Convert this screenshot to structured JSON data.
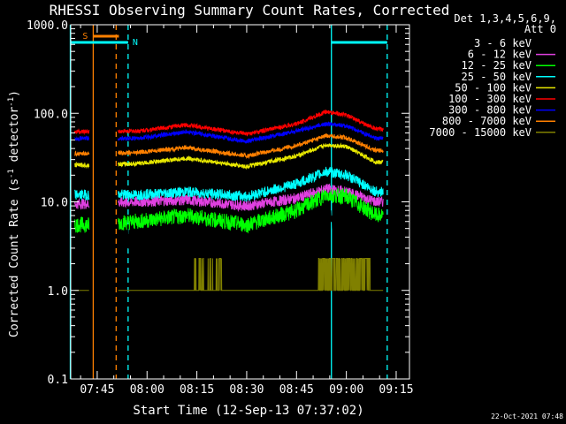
{
  "chart_data": {
    "type": "line",
    "title": "RHESSI Observing Summary Count Rates, Corrected",
    "xlabel": "Start Time (12-Sep-13 07:37:02)",
    "ylabel_main": "Corrected Count Rate (s",
    "ylabel_sup1": "-1",
    "ylabel_mid": " detector",
    "ylabel_sup2": "-1",
    "ylabel_end": ")",
    "yscale": "log",
    "ylim": [
      0.1,
      1000
    ],
    "y_ticks": [
      {
        "v": 0.1,
        "label": "0.1"
      },
      {
        "v": 1,
        "label": "1.0"
      },
      {
        "v": 10,
        "label": "10.0"
      },
      {
        "v": 100,
        "label": "100.0"
      },
      {
        "v": 1000,
        "label": "1000.0"
      }
    ],
    "xlim": [
      "07:37:02",
      "09:19:00"
    ],
    "x_ticks": [
      "07:45",
      "08:00",
      "08:15",
      "08:30",
      "08:45",
      "09:00",
      "09:15"
    ],
    "legend_header": [
      "Det 1,3,4,5,6,9,",
      "Att 0"
    ],
    "legend_position": "top-right, outside plot",
    "grid": false,
    "series": [
      {
        "name": "3 - 6 keV",
        "color": "#000000",
        "values": [
          [
            7.72,
            2.5
          ],
          [
            7.95,
            4.3
          ],
          [
            8.2,
            3.3
          ],
          [
            8.5,
            2.8
          ],
          [
            8.75,
            4
          ],
          [
            8.9,
            6.5
          ],
          [
            9.0,
            6
          ],
          [
            9.15,
            3.5
          ]
        ]
      },
      {
        "name": "6 - 12 keV",
        "color": "#e040e0",
        "values": [
          [
            7.72,
            9.5
          ],
          [
            7.95,
            10
          ],
          [
            8.2,
            10.5
          ],
          [
            8.5,
            9
          ],
          [
            8.75,
            11
          ],
          [
            8.9,
            14
          ],
          [
            9.0,
            13
          ],
          [
            9.15,
            10
          ]
        ]
      },
      {
        "name": "12 - 25 keV",
        "color": "#00ff00",
        "values": [
          [
            7.72,
            5.5
          ],
          [
            7.95,
            6
          ],
          [
            8.2,
            7
          ],
          [
            8.5,
            5.5
          ],
          [
            8.75,
            8
          ],
          [
            8.9,
            12
          ],
          [
            9.0,
            11.5
          ],
          [
            9.15,
            7
          ]
        ]
      },
      {
        "name": "25 - 50 keV",
        "color": "#00ffff",
        "values": [
          [
            7.72,
            12
          ],
          [
            7.95,
            12
          ],
          [
            8.2,
            13
          ],
          [
            8.5,
            11.5
          ],
          [
            8.75,
            16
          ],
          [
            8.9,
            22
          ],
          [
            9.0,
            20
          ],
          [
            9.15,
            13
          ]
        ]
      },
      {
        "name": "50 - 100 keV",
        "color": "#e8e800",
        "values": [
          [
            7.72,
            26
          ],
          [
            7.95,
            27
          ],
          [
            8.2,
            31
          ],
          [
            8.5,
            25
          ],
          [
            8.75,
            33
          ],
          [
            8.9,
            44
          ],
          [
            9.0,
            42
          ],
          [
            9.15,
            28
          ]
        ]
      },
      {
        "name": "100 - 300 keV",
        "color": "#ff0000",
        "values": [
          [
            7.72,
            62
          ],
          [
            7.95,
            63
          ],
          [
            8.2,
            74
          ],
          [
            8.5,
            58
          ],
          [
            8.75,
            76
          ],
          [
            8.9,
            104
          ],
          [
            9.0,
            95
          ],
          [
            9.15,
            66
          ]
        ]
      },
      {
        "name": "300 - 800 keV",
        "color": "#0000ff",
        "values": [
          [
            7.72,
            52
          ],
          [
            7.95,
            52
          ],
          [
            8.2,
            62
          ],
          [
            8.5,
            48
          ],
          [
            8.75,
            63
          ],
          [
            8.9,
            76
          ],
          [
            9.0,
            72
          ],
          [
            9.15,
            52
          ]
        ]
      },
      {
        "name": "800 - 7000 keV",
        "color": "#ff8000",
        "values": [
          [
            7.72,
            35
          ],
          [
            7.95,
            36
          ],
          [
            8.2,
            41
          ],
          [
            8.5,
            33
          ],
          [
            8.75,
            43
          ],
          [
            8.9,
            56
          ],
          [
            9.0,
            53
          ],
          [
            9.15,
            38
          ]
        ]
      },
      {
        "name": "7000 - 15000 keV",
        "color": "#808000",
        "values": [
          [
            7.72,
            1
          ],
          [
            7.95,
            1
          ],
          [
            8.2,
            1
          ],
          [
            8.5,
            1
          ],
          [
            8.75,
            1
          ],
          [
            8.9,
            1
          ],
          [
            9.0,
            1
          ],
          [
            9.15,
            1
          ]
        ]
      }
    ],
    "annotations": [
      {
        "label": "S",
        "color": "#ff8000"
      },
      {
        "label": "N",
        "color": "#00ffff"
      }
    ],
    "intervals": {
      "saa": {
        "start": 7.73,
        "end": 7.845,
        "color": "#ff8000"
      },
      "night": [
        {
          "start": 7.615,
          "end": 7.905,
          "color": "#00ffff"
        },
        {
          "start": 8.925,
          "end": 9.205,
          "color": "#00ffff"
        }
      ]
    },
    "footer_date": "22-Oct-2021 07:48"
  }
}
